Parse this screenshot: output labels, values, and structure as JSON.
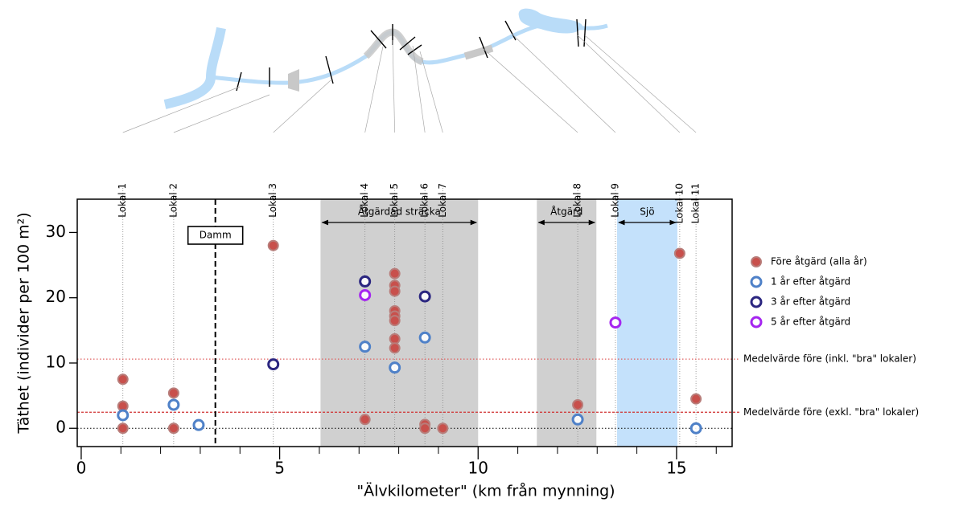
{
  "chart_data": {
    "type": "scatter",
    "xlabel": "\"Älvkilometer\" (km från mynning)",
    "ylabel": "Täthet (individer per 100 m²)",
    "xlim": [
      -0.1,
      16.4
    ],
    "ylim": [
      -2.8,
      35.1
    ],
    "xticks": [
      0,
      5,
      10,
      15
    ],
    "xminorticks": [
      1,
      2,
      3,
      4,
      6,
      7,
      8,
      9,
      11,
      12,
      13,
      14,
      16
    ],
    "yticks": [
      0,
      10,
      20,
      30
    ],
    "baseline": 0,
    "sites": {
      "names": [
        "Lokal 1",
        "Lokal 2",
        "Lokal 3",
        "Lokal 4",
        "Lokal 5",
        "Lokal 6",
        "Lokal 7",
        "Lokal 8",
        "Lokal 9",
        "Lokal 10",
        "Lokal 11"
      ],
      "x": [
        1.05,
        2.33,
        4.84,
        7.15,
        7.9,
        8.66,
        9.11,
        12.51,
        13.46,
        15.08,
        15.49
      ]
    },
    "regions": [
      {
        "label": "Åtgärdad sträcka",
        "x": [
          6.03,
          10
        ],
        "color": "#d0d0d0"
      },
      {
        "label": "Åtgärd",
        "x": [
          11.48,
          12.98
        ],
        "color": "#d0d0d0"
      },
      {
        "label": "Sjö",
        "x": [
          13.5,
          15.02
        ],
        "color": "#c4e1fb"
      }
    ],
    "dam": {
      "label": "Damm",
      "x": 3.38
    },
    "hlines": [
      {
        "label": "Medelvärde före (inkl. \"bra\" lokaler)",
        "y": 10.6,
        "color": "#e06060",
        "dash": "1.5,2.5"
      },
      {
        "label": "Medelvärde före (exkl. \"bra\" lokaler)",
        "y": 2.46,
        "color": "#d03030",
        "dash": "3,2"
      }
    ],
    "series": [
      {
        "name": "Före åtgärd (alla år)",
        "color": "#c8504c",
        "filled": true,
        "x": [
          1.05,
          1.05,
          1.05,
          2.33,
          2.33,
          4.84,
          7.15,
          7.9,
          7.9,
          7.9,
          7.9,
          7.9,
          7.9,
          7.9,
          7.9,
          8.66,
          8.66,
          9.11,
          12.51,
          15.08,
          15.49
        ],
        "values": [
          7.5,
          3.4,
          0,
          5.4,
          0,
          28,
          1.35,
          23.7,
          21.9,
          21,
          18,
          17.2,
          16.5,
          13.7,
          12.3,
          0.6,
          0,
          0,
          3.6,
          26.8,
          4.5
        ]
      },
      {
        "name": "1 år efter åtgärd",
        "color": "#4f81c8",
        "filled": false,
        "x": [
          1.05,
          2.33,
          2.96,
          7.15,
          7.9,
          8.66,
          12.51,
          15.49
        ],
        "values": [
          2,
          3.6,
          0.5,
          12.5,
          9.3,
          13.9,
          1.35,
          0
        ]
      },
      {
        "name": "3 år efter åtgärd",
        "color": "#2b2680",
        "filled": false,
        "x": [
          4.84,
          7.15,
          8.66
        ],
        "values": [
          9.8,
          22.5,
          20.2
        ]
      },
      {
        "name": "5 år efter åtgärd",
        "color": "#a526f0",
        "filled": false,
        "x": [
          7.15,
          13.46
        ],
        "values": [
          20.4,
          16.2
        ]
      }
    ]
  }
}
